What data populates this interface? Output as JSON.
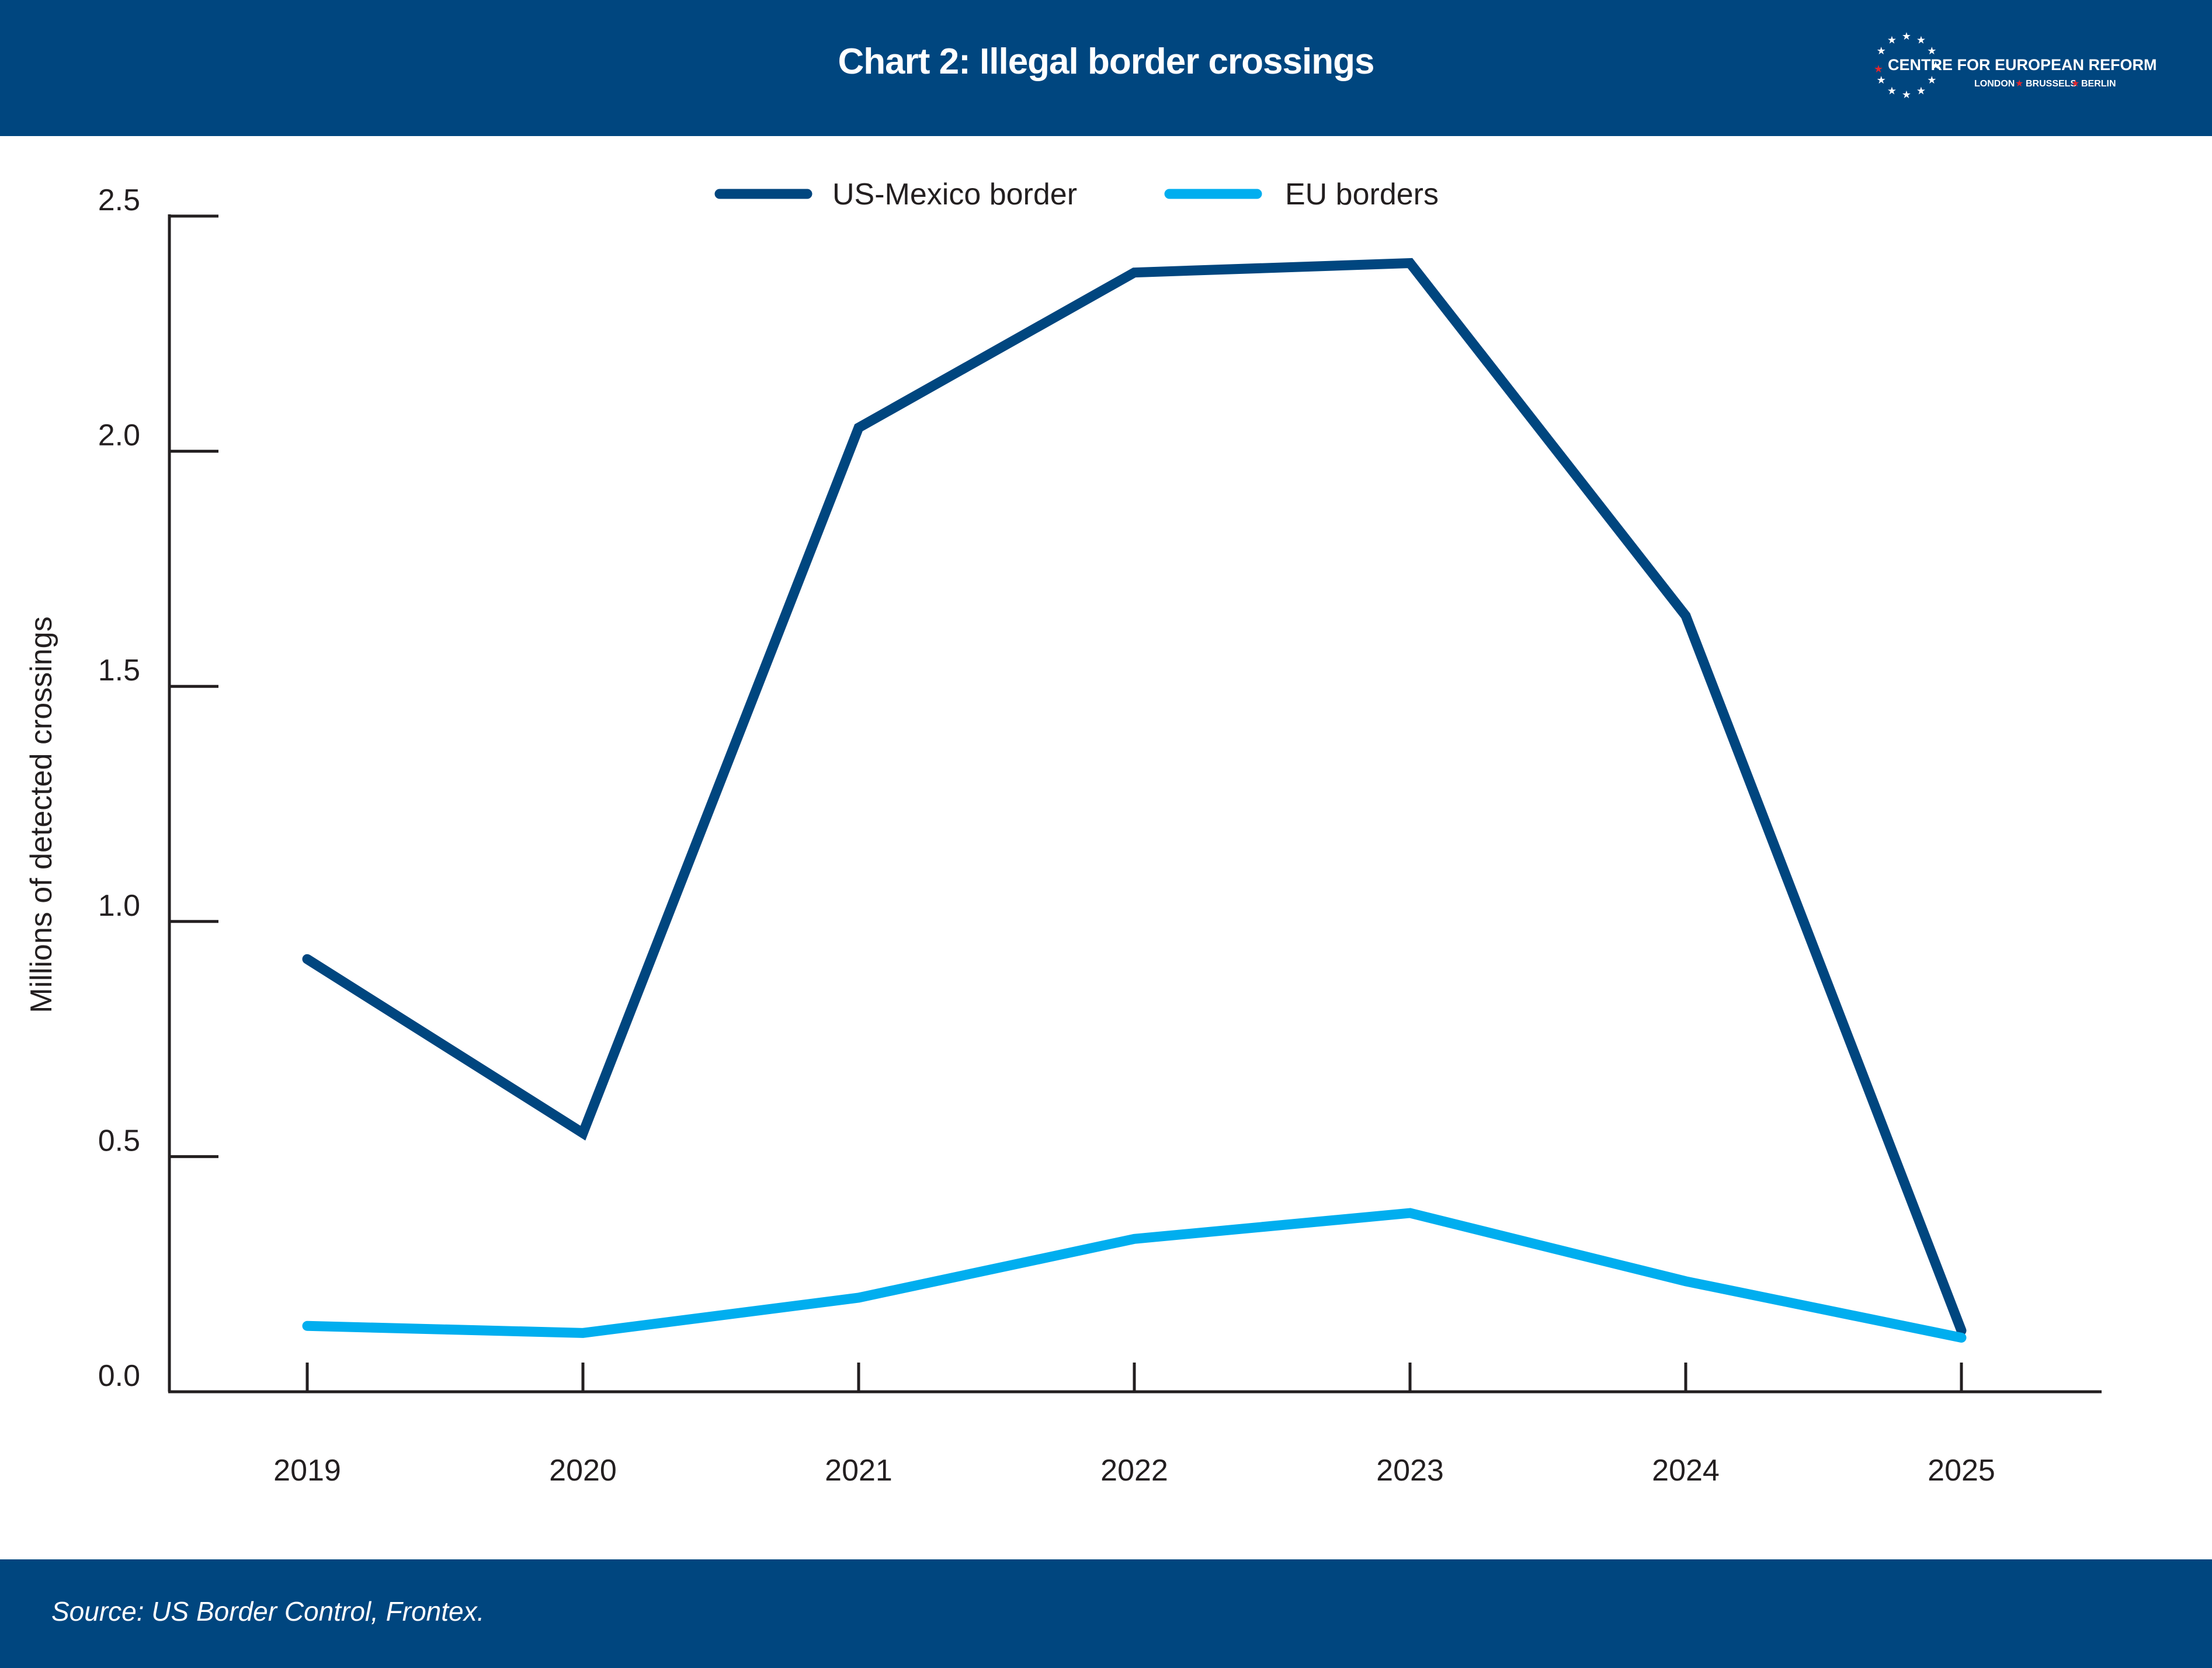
{
  "header": {
    "title": "Chart 2: Illegal border crossings",
    "logo": {
      "name": "CENTRE FOR EUROPEAN REFORM",
      "cities": [
        "LONDON",
        "BRUSSELS",
        "BERLIN"
      ],
      "icon": "eu-stars-icon"
    }
  },
  "footer": {
    "source": "Source: US Border Control, Frontex."
  },
  "colors": {
    "brand": "#00467F",
    "us_mexico": "#00467F",
    "eu": "#00AEEF",
    "axis": "#231f20",
    "star_accent": "#E1262D"
  },
  "chart_data": {
    "type": "line",
    "title": "Chart 2: Illegal border crossings",
    "xlabel": "",
    "ylabel": "Millions of detected crossings",
    "x": [
      "2019",
      "2020",
      "2021",
      "2022",
      "2023",
      "2024",
      "2025"
    ],
    "ylim": [
      0,
      2.5
    ],
    "yticks": [
      "0.0",
      "0.5",
      "1.0",
      "1.5",
      "2.0",
      "2.5"
    ],
    "ytick_values": [
      0,
      0.5,
      1.0,
      1.5,
      2.0,
      2.5
    ],
    "grid": false,
    "legend_position": "top-center",
    "series": [
      {
        "name": "US-Mexico border",
        "color": "#00467F",
        "values": [
          0.92,
          0.55,
          2.05,
          2.38,
          2.4,
          1.65,
          0.13
        ]
      },
      {
        "name": "EU borders",
        "color": "#00AEEF",
        "values": [
          0.14,
          0.125,
          0.2,
          0.325,
          0.38,
          0.235,
          0.115
        ]
      }
    ]
  }
}
